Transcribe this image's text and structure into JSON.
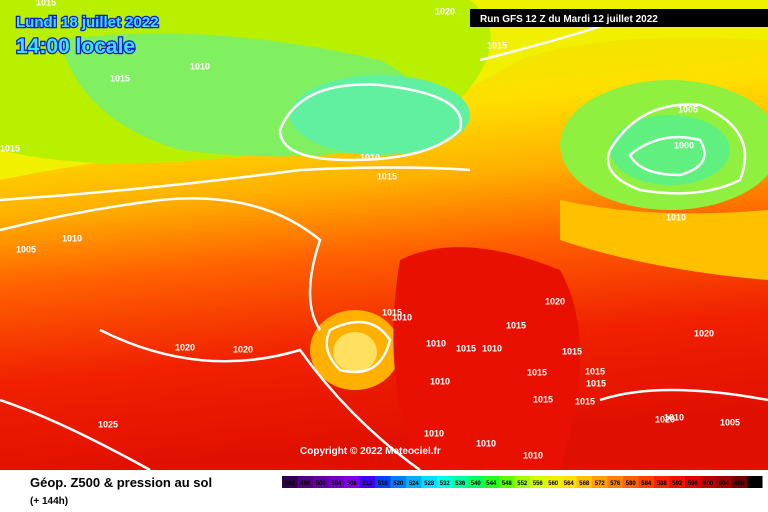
{
  "header": {
    "date": "Lundi 18 juillet 2022",
    "time": "14:00 locale",
    "run": "Run GFS 12 Z du Mardi 12 juillet 2022"
  },
  "copyright": "Copyright © 2022 Meteociel.fr",
  "footer": {
    "title": "Géop. Z500 & pression au sol",
    "lead": "(+ 144h)"
  },
  "scale": {
    "labels": [
      "492",
      "496",
      "500",
      "504",
      "508",
      "512",
      "516",
      "520",
      "524",
      "528",
      "532",
      "536",
      "540",
      "544",
      "548",
      "552",
      "556",
      "560",
      "564",
      "568",
      "572",
      "576",
      "580",
      "584",
      "588",
      "592",
      "596",
      "600",
      "604",
      "608",
      "612"
    ]
  },
  "isobars": {
    "labels": [
      "1015",
      "1020",
      "1015",
      "1015",
      "1010",
      "1015",
      "1010",
      "1015",
      "1005",
      "1000",
      "1010",
      "1010",
      "1005",
      "1020",
      "1015",
      "1015",
      "1010",
      "1020",
      "1010",
      "1015",
      "1010",
      "1020",
      "1020",
      "1015",
      "1015",
      "1015",
      "1015",
      "1010",
      "1015",
      "1015",
      "1010",
      "1005",
      "1025",
      "1010",
      "1010",
      "1010",
      "1020"
    ]
  }
}
